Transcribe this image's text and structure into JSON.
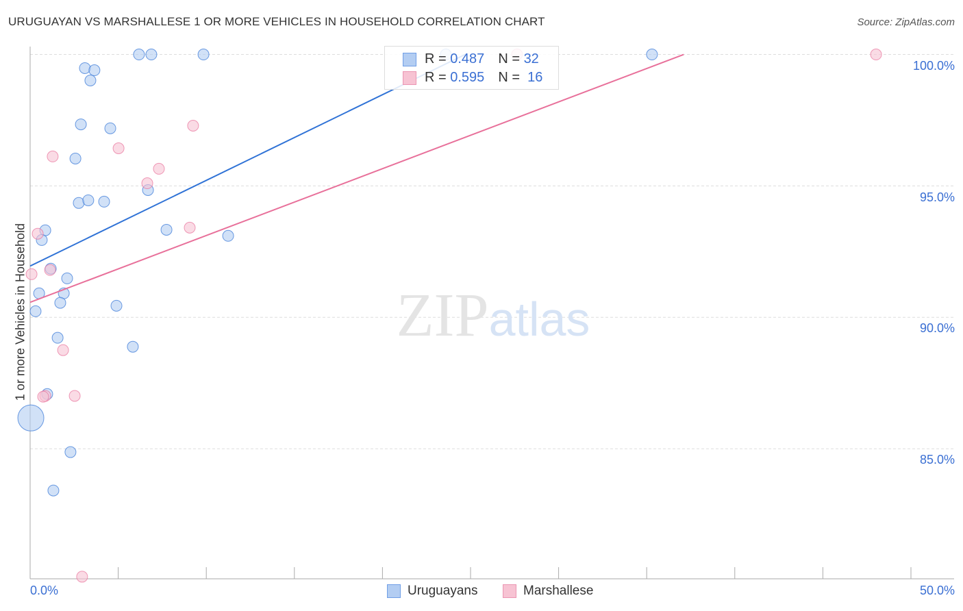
{
  "chart_data": {
    "type": "scatter",
    "title": "URUGUAYAN VS MARSHALLESE 1 OR MORE VEHICLES IN HOUSEHOLD CORRELATION CHART",
    "source": "Source: ZipAtlas.com",
    "xlabel": "",
    "ylabel": "1 or more Vehicles in Household",
    "xlim": [
      0,
      52.45
    ],
    "ylim": [
      80.05,
      100.3
    ],
    "x_tick_labels": {
      "left": "0.0%",
      "right": "50.0%"
    },
    "y_ticks": [
      {
        "value": 100,
        "label": "100.0%"
      },
      {
        "value": 95,
        "label": "95.0%"
      },
      {
        "value": 90,
        "label": "90.0%"
      },
      {
        "value": 85,
        "label": "85.0%"
      }
    ],
    "x_tick_marks": [
      0,
      5,
      10,
      15,
      20,
      25,
      30,
      35,
      40,
      45,
      50
    ],
    "grid": true,
    "legend_placement": "top-center",
    "watermark": "ZIPatlas",
    "series": [
      {
        "name": "Uruguayans",
        "color": "#2f72d6",
        "fill": "#b3cdf2",
        "R": "0.487",
        "N": "32",
        "trend": {
          "x0": 0,
          "y0": 91.95,
          "x1": 24.7,
          "y1": 100
        },
        "points": [
          [
            6.18,
            100
          ],
          [
            6.88,
            100
          ],
          [
            9.84,
            100
          ],
          [
            23.6,
            100
          ],
          [
            35.3,
            100
          ],
          [
            3.11,
            99.48
          ],
          [
            3.65,
            99.4
          ],
          [
            3.42,
            99.01
          ],
          [
            2.88,
            97.34
          ],
          [
            4.55,
            97.19
          ],
          [
            2.57,
            96.04
          ],
          [
            2.76,
            94.35
          ],
          [
            3.3,
            94.45
          ],
          [
            4.2,
            94.4
          ],
          [
            6.69,
            94.84
          ],
          [
            7.74,
            93.33
          ],
          [
            0.86,
            93.31
          ],
          [
            0.66,
            92.94
          ],
          [
            11.24,
            93.1
          ],
          [
            1.17,
            91.85
          ],
          [
            2.1,
            91.48
          ],
          [
            0.51,
            90.91
          ],
          [
            1.91,
            90.91
          ],
          [
            1.71,
            90.55
          ],
          [
            4.9,
            90.44
          ],
          [
            0.31,
            90.23
          ],
          [
            1.56,
            89.22
          ],
          [
            5.83,
            88.88
          ],
          [
            0.97,
            87.08
          ],
          [
            0.04,
            86.17,
            "large"
          ],
          [
            2.29,
            84.87
          ],
          [
            1.32,
            83.41
          ]
        ]
      },
      {
        "name": "Marshallese",
        "color": "#e8709a",
        "fill": "#f7c3d3",
        "R": "0.595",
        "N": "16",
        "trend": {
          "x0": 0,
          "y0": 90.57,
          "x1": 37.1,
          "y1": 100
        },
        "points": [
          [
            1.28,
            96.12
          ],
          [
            5.02,
            96.43
          ],
          [
            9.25,
            97.29
          ],
          [
            7.31,
            95.65
          ],
          [
            6.65,
            95.1
          ],
          [
            9.06,
            93.41
          ],
          [
            0.43,
            93.18
          ],
          [
            1.13,
            91.8
          ],
          [
            0.08,
            91.64
          ],
          [
            1.87,
            88.75
          ],
          [
            0.86,
            87.01
          ],
          [
            0.74,
            86.98
          ],
          [
            2.53,
            87.01
          ],
          [
            2.95,
            80.13
          ],
          [
            27.64,
            100
          ],
          [
            48.02,
            100
          ]
        ]
      }
    ]
  },
  "legend": {
    "r_label": "R =",
    "n_label": "N ="
  }
}
